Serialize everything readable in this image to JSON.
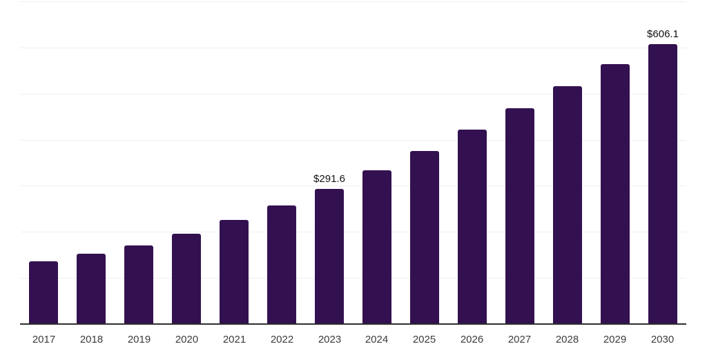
{
  "chart_data": {
    "type": "bar",
    "title": "",
    "xlabel": "",
    "ylabel": "",
    "categories": [
      "2017",
      "2018",
      "2019",
      "2020",
      "2021",
      "2022",
      "2023",
      "2024",
      "2025",
      "2026",
      "2027",
      "2028",
      "2029",
      "2030"
    ],
    "values": [
      135,
      151,
      169,
      194,
      224,
      256,
      291.6,
      332,
      374,
      420,
      466,
      514,
      562,
      606.1
    ],
    "data_labels": {
      "2023": "$291.6",
      "2030": "$606.1"
    },
    "ylim": [
      0,
      700
    ],
    "gridline_step": 100,
    "grid": "horizontal",
    "y_tick_labels_shown": false,
    "legend": "none",
    "colors": {
      "bar": "#331150",
      "grid": "#efefef",
      "axis_line": "#2e2e2e",
      "x_tick_label": "#3b3b3b",
      "data_label": "#111111",
      "background": "#ffffff"
    }
  }
}
